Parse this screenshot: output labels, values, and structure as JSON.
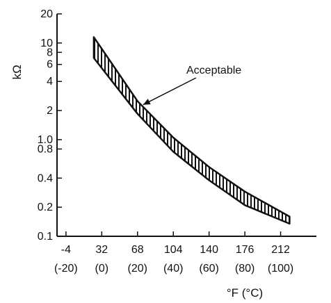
{
  "chart_data": {
    "type": "area",
    "title": "",
    "ylabel": "kΩ",
    "xlabel": "°F (°C)",
    "y_scale": "log",
    "ylim": [
      0.1,
      20
    ],
    "xlim": [
      -13,
      248
    ],
    "y_ticks": [
      {
        "value": 20,
        "label": "20"
      },
      {
        "value": 10,
        "label": "10"
      },
      {
        "value": 8,
        "label": "8"
      },
      {
        "value": 6,
        "label": "6"
      },
      {
        "value": 4,
        "label": "4"
      },
      {
        "value": 2,
        "label": "2"
      },
      {
        "value": 1.0,
        "label": "1.0"
      },
      {
        "value": 0.8,
        "label": "0.8"
      },
      {
        "value": 0.4,
        "label": "0.4"
      },
      {
        "value": 0.2,
        "label": "0.2"
      },
      {
        "value": 0.1,
        "label": "0.1"
      }
    ],
    "x_ticks": [
      {
        "value": -4,
        "label_f": "-4",
        "label_c": "(-20)"
      },
      {
        "value": 32,
        "label_f": "32",
        "label_c": "(0)"
      },
      {
        "value": 68,
        "label_f": "68",
        "label_c": "(20)"
      },
      {
        "value": 104,
        "label_f": "104",
        "label_c": "(40)"
      },
      {
        "value": 140,
        "label_f": "140",
        "label_c": "(60)"
      },
      {
        "value": 176,
        "label_f": "176",
        "label_c": "(80)"
      },
      {
        "value": 212,
        "label_f": "212",
        "label_c": "(100)"
      }
    ],
    "series": [
      {
        "name": "Acceptable",
        "x": [
          24,
          68,
          104,
          140,
          176,
          221
        ],
        "upper": [
          11.5,
          2.5,
          1.05,
          0.52,
          0.29,
          0.16
        ],
        "lower": [
          7.0,
          1.85,
          0.75,
          0.38,
          0.21,
          0.135
        ]
      }
    ],
    "annotations": [
      {
        "text": "Acceptable",
        "target_x": 68,
        "target_y": 2.15
      }
    ],
    "grid": false,
    "legend": "none"
  }
}
